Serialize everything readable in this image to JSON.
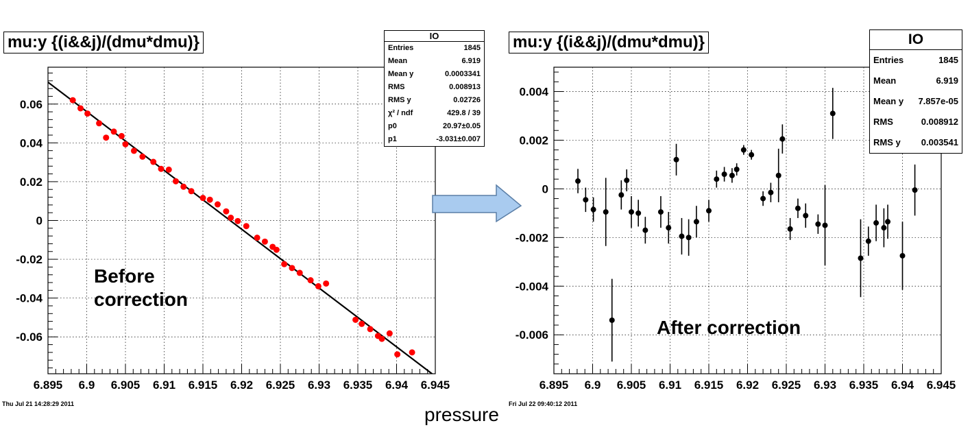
{
  "x_axis_label": "pressure",
  "chart_data": [
    {
      "type": "scatter",
      "panel": "left",
      "title": "mu:y {(i&&j)/(dmu*dmu)}",
      "annotation": "Before correction",
      "annotation_lines": [
        "Before",
        "correction"
      ],
      "datestamp": "Thu Jul 21 14:28:29 2011",
      "xlim": [
        6.895,
        6.945
      ],
      "ylim": [
        -0.079,
        0.079
      ],
      "x_ticks": [
        "6.895",
        "6.9",
        "6.905",
        "6.91",
        "6.915",
        "6.92",
        "6.925",
        "6.93",
        "6.935",
        "6.94",
        "6.945"
      ],
      "y_ticks": [
        "0.06",
        "0.04",
        "0.02",
        "0",
        "-0.02",
        "-0.04",
        "-0.06"
      ],
      "grid": true,
      "marker_color": "#ff0000",
      "fit_line": {
        "p0": 20.97,
        "p1": -3.031,
        "color": "#000000"
      },
      "stats_box": {
        "header": "IO",
        "rows": [
          [
            "Entries",
            "1845"
          ],
          [
            "Mean",
            "6.919"
          ],
          [
            "Mean y",
            "0.0003341"
          ],
          [
            "RMS",
            "0.008913"
          ],
          [
            "RMS y",
            "0.02726"
          ],
          [
            "χ² / ndf",
            "429.8 / 39"
          ],
          [
            "p0",
            "20.97±0.05"
          ],
          [
            "p1",
            "-3.031±0.007"
          ]
        ]
      },
      "points": [
        [
          6.8982,
          0.062
        ],
        [
          6.8992,
          0.0578
        ],
        [
          6.9001,
          0.0551
        ],
        [
          6.9016,
          0.0501
        ],
        [
          6.9025,
          0.0427
        ],
        [
          6.9035,
          0.0458
        ],
        [
          6.9045,
          0.0435
        ],
        [
          6.905,
          0.0393
        ],
        [
          6.9061,
          0.0359
        ],
        [
          6.9072,
          0.0329
        ],
        [
          6.9086,
          0.0302
        ],
        [
          6.9096,
          0.0266
        ],
        [
          6.9106,
          0.0262
        ],
        [
          6.9115,
          0.0202
        ],
        [
          6.9125,
          0.0174
        ],
        [
          6.9135,
          0.0151
        ],
        [
          6.915,
          0.0116
        ],
        [
          6.9159,
          0.0107
        ],
        [
          6.9169,
          0.0083
        ],
        [
          6.918,
          0.0047
        ],
        [
          6.9186,
          0.0014
        ],
        [
          6.9195,
          -0.0003
        ],
        [
          6.9206,
          -0.0029
        ],
        [
          6.922,
          -0.0089
        ],
        [
          6.923,
          -0.0109
        ],
        [
          6.924,
          -0.0136
        ],
        [
          6.9245,
          -0.0151
        ],
        [
          6.9255,
          -0.0225
        ],
        [
          6.9265,
          -0.0245
        ],
        [
          6.9275,
          -0.027
        ],
        [
          6.9289,
          -0.0308
        ],
        [
          6.9299,
          -0.0339
        ],
        [
          6.9309,
          -0.0325
        ],
        [
          6.9347,
          -0.0512
        ],
        [
          6.9355,
          -0.0533
        ],
        [
          6.9366,
          -0.056
        ],
        [
          6.9376,
          -0.0595
        ],
        [
          6.9381,
          -0.061
        ],
        [
          6.9391,
          -0.0582
        ],
        [
          6.9401,
          -0.069
        ],
        [
          6.942,
          -0.068
        ]
      ]
    },
    {
      "type": "scatter",
      "panel": "right",
      "title": "mu:y {(i&&j)/(dmu*dmu)}",
      "annotation": "After correction",
      "annotation_lines": [
        "After correction"
      ],
      "datestamp": "Fri Jul 22 09:40:12 2011",
      "xlim": [
        6.895,
        6.945
      ],
      "ylim": [
        -0.0076,
        0.005
      ],
      "x_ticks": [
        "6.895",
        "6.9",
        "6.905",
        "6.91",
        "6.915",
        "6.92",
        "6.925",
        "6.93",
        "6.935",
        "6.94",
        "6.945"
      ],
      "y_ticks": [
        "0.004",
        "0.002",
        "0",
        "-0.002",
        "-0.004",
        "-0.006"
      ],
      "grid": true,
      "marker_color": "#000000",
      "stats_box": {
        "header": "IO",
        "rows": [
          [
            "Entries",
            "1845"
          ],
          [
            "Mean",
            "6.919"
          ],
          [
            "Mean y",
            "7.857e-05"
          ],
          [
            "RMS",
            "0.008912"
          ],
          [
            "RMS y",
            "0.003541"
          ]
        ]
      },
      "points": [
        [
          6.8981,
          0.00032,
          0.0005
        ],
        [
          6.8991,
          -0.00045,
          0.0005
        ],
        [
          6.9001,
          -0.00085,
          0.0005
        ],
        [
          6.9017,
          -0.00095,
          0.0014
        ],
        [
          6.9025,
          -0.0054,
          0.0017
        ],
        [
          6.9037,
          -0.00025,
          0.0006
        ],
        [
          6.9044,
          0.00035,
          0.00045
        ],
        [
          6.905,
          -0.00095,
          0.00065
        ],
        [
          6.9059,
          -0.001,
          0.00055
        ],
        [
          6.9068,
          -0.0017,
          0.00055
        ],
        [
          6.9088,
          -0.00095,
          0.00065
        ],
        [
          6.9098,
          -0.0016,
          0.00065
        ],
        [
          6.9108,
          0.0012,
          0.00065
        ],
        [
          6.9115,
          -0.00195,
          0.00075
        ],
        [
          6.9124,
          -0.002,
          0.00075
        ],
        [
          6.9134,
          -0.00135,
          0.00065
        ],
        [
          6.915,
          -0.0009,
          0.00045
        ],
        [
          6.916,
          0.0004,
          0.00035
        ],
        [
          6.917,
          0.0006,
          0.0003
        ],
        [
          6.918,
          0.00055,
          0.0003
        ],
        [
          6.9186,
          0.0008,
          0.00025
        ],
        [
          6.9195,
          0.0016,
          0.0002
        ],
        [
          6.9205,
          0.0014,
          0.0002
        ],
        [
          6.922,
          -0.0004,
          0.0003
        ],
        [
          6.923,
          -0.00015,
          0.0004
        ],
        [
          6.924,
          0.00055,
          0.0011
        ],
        [
          6.9245,
          0.00205,
          0.0006
        ],
        [
          6.9255,
          -0.00165,
          0.00045
        ],
        [
          6.9265,
          -0.0008,
          0.0004
        ],
        [
          6.9275,
          -0.0011,
          0.0005
        ],
        [
          6.9291,
          -0.00145,
          0.0004
        ],
        [
          6.93,
          -0.0015,
          0.00165
        ],
        [
          6.931,
          0.0031,
          0.00105
        ],
        [
          6.9346,
          -0.00285,
          0.0016
        ],
        [
          6.9356,
          -0.00215,
          0.0006
        ],
        [
          6.9366,
          -0.0014,
          0.00075
        ],
        [
          6.9376,
          -0.0016,
          0.0008
        ],
        [
          6.9381,
          -0.00135,
          0.0007
        ],
        [
          6.94,
          -0.00275,
          0.0014
        ],
        [
          6.9416,
          -5e-05,
          0.00105
        ]
      ]
    }
  ]
}
